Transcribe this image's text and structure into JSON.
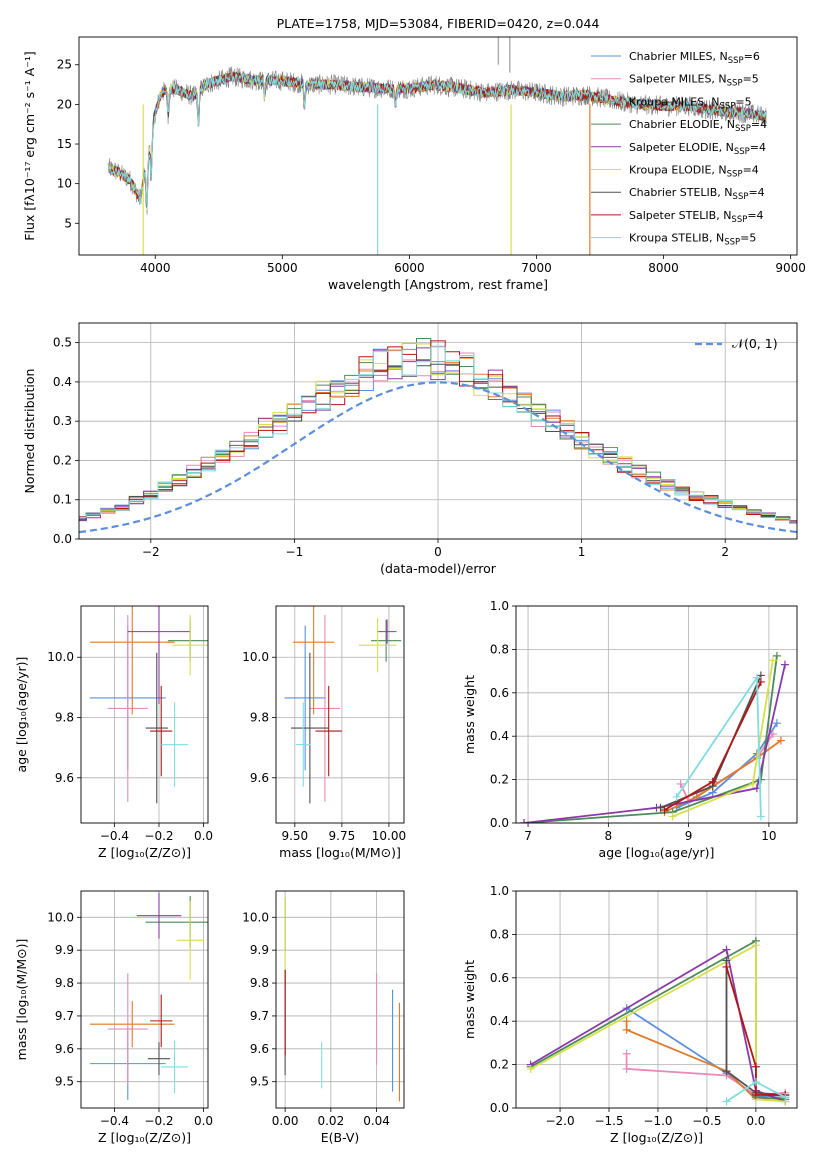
{
  "colors": {
    "Chabrier MILES": "#5b8fdc",
    "Salpeter MILES": "#e88ab8",
    "Kroupa MILES": "#e07a2a",
    "Chabrier ELODIE": "#4d8a5a",
    "Salpeter ELODIE": "#8a3aa8",
    "Kroupa ELODIE": "#d6e04a",
    "Chabrier STELIB": "#505050",
    "Salpeter STELIB": "#b01818",
    "Kroupa STELIB": "#80dce0"
  },
  "chart_data": [
    {
      "id": "spectrum",
      "type": "line",
      "title": "PLATE=1758, MJD=53084, FIBERID=0420, z=0.044",
      "xlabel": "wavelength [Angstrom, rest frame]",
      "ylabel": "Flux [fλ10⁻¹⁷ erg cm⁻² s⁻¹ A⁻¹]",
      "xlim": [
        3400,
        9050
      ],
      "ylim": [
        1,
        28.5
      ],
      "xticks": [
        4000,
        5000,
        6000,
        7000,
        8000,
        9000
      ],
      "yticks": [
        5,
        10,
        15,
        20,
        25
      ],
      "legend_position": "top-right",
      "legend": [
        {
          "name": "Chabrier MILES",
          "label": "Chabrier MILES, N",
          "sub": "SSP",
          "suffix": "=6"
        },
        {
          "name": "Salpeter MILES",
          "label": "Salpeter MILES, N",
          "sub": "SSP",
          "suffix": "=5"
        },
        {
          "name": "Kroupa MILES",
          "label": "Kroupa MILES, N",
          "sub": "SSP",
          "suffix": "=5"
        },
        {
          "name": "Chabrier ELODIE",
          "label": "Chabrier ELODIE, N",
          "sub": "SSP",
          "suffix": "=4"
        },
        {
          "name": "Salpeter ELODIE",
          "label": "Salpeter ELODIE, N",
          "sub": "SSP",
          "suffix": "=4"
        },
        {
          "name": "Kroupa ELODIE",
          "label": "Kroupa ELODIE, N",
          "sub": "SSP",
          "suffix": "=4"
        },
        {
          "name": "Chabrier STELIB",
          "label": "Chabrier STELIB, N",
          "sub": "SSP",
          "suffix": "=4"
        },
        {
          "name": "Salpeter STELIB",
          "label": "Salpeter STELIB, N",
          "sub": "SSP",
          "suffix": "=4"
        },
        {
          "name": "Kroupa STELIB",
          "label": "Kroupa STELIB, N",
          "sub": "SSP",
          "suffix": "=5"
        }
      ],
      "continuum": [
        [
          3630,
          12
        ],
        [
          3700,
          11.5
        ],
        [
          3800,
          10.5
        ],
        [
          3880,
          8
        ],
        [
          3950,
          14
        ],
        [
          4000,
          19
        ],
        [
          4050,
          21.5
        ],
        [
          4150,
          22
        ],
        [
          4300,
          21
        ],
        [
          4400,
          22.5
        ],
        [
          4600,
          23.5
        ],
        [
          4800,
          23
        ],
        [
          5000,
          23
        ],
        [
          5200,
          22.5
        ],
        [
          5400,
          22.5
        ],
        [
          5600,
          22.2
        ],
        [
          5800,
          22
        ],
        [
          6000,
          22
        ],
        [
          6200,
          22.5
        ],
        [
          6400,
          22
        ],
        [
          6600,
          21.5
        ],
        [
          6800,
          21.8
        ],
        [
          7000,
          21.5
        ],
        [
          7200,
          21
        ],
        [
          7400,
          21.2
        ],
        [
          7600,
          20.5
        ],
        [
          7800,
          20
        ],
        [
          8000,
          19.8
        ],
        [
          8200,
          19.8
        ],
        [
          8400,
          19.2
        ],
        [
          8600,
          19
        ],
        [
          8800,
          18.5
        ]
      ]
    },
    {
      "id": "residuals",
      "type": "histogram",
      "xlabel": "(data-model)/error",
      "ylabel": "Normed distribution",
      "xlim": [
        -2.5,
        2.5
      ],
      "ylim": [
        0,
        0.55
      ],
      "xticks": [
        -2,
        -1,
        0,
        1,
        2
      ],
      "yticks": [
        0.0,
        0.1,
        0.2,
        0.3,
        0.4,
        0.5
      ],
      "legend_position": "top-right",
      "gaussian_label": "𝒩(0, 1)",
      "bin_width": 0.1,
      "base_values": [
        0.018,
        0.02,
        0.027,
        0.03,
        0.038,
        0.045,
        0.052,
        0.06,
        0.072,
        0.08,
        0.098,
        0.11,
        0.132,
        0.15,
        0.17,
        0.19,
        0.215,
        0.235,
        0.255,
        0.28,
        0.3,
        0.325,
        0.345,
        0.365,
        0.38,
        0.4,
        0.42,
        0.44,
        0.45,
        0.455,
        0.46,
        0.455,
        0.445,
        0.43,
        0.41,
        0.39,
        0.37,
        0.345,
        0.32,
        0.3,
        0.275,
        0.25,
        0.23,
        0.21,
        0.19,
        0.17,
        0.155,
        0.14,
        0.125,
        0.11,
        0.1,
        0.088,
        0.078,
        0.07,
        0.06,
        0.052,
        0.045,
        0.04,
        0.033,
        0.028,
        0.025,
        0.022,
        0.02
      ]
    },
    {
      "id": "age-vs-Z",
      "type": "errorbar",
      "xlabel": "Z [log₁₀(Z/Z⊙)]",
      "ylabel": "age  [log₁₀(age/yr)]",
      "xlim": [
        -0.55,
        0.02
      ],
      "ylim": [
        9.45,
        10.17
      ],
      "xticks": [
        -0.4,
        -0.2,
        0.0
      ],
      "yticks": [
        9.6,
        9.8,
        10.0
      ],
      "points": [
        {
          "series": "Chabrier MILES",
          "x": -0.34,
          "y": 9.865,
          "xerr": 0.17,
          "yerr": 0.24
        },
        {
          "series": "Salpeter MILES",
          "x": -0.34,
          "y": 9.83,
          "xerr": 0.09,
          "yerr": 0.31
        },
        {
          "series": "Kroupa MILES",
          "x": -0.32,
          "y": 10.05,
          "xerr": 0.19,
          "yerr": 0.24
        },
        {
          "series": "Chabrier ELODIE",
          "x": -0.06,
          "y": 10.055,
          "xerr": 0.1,
          "yerr": 0.07
        },
        {
          "series": "Salpeter ELODIE",
          "x": -0.2,
          "y": 10.085,
          "xerr": 0.14,
          "yerr": 0.24
        },
        {
          "series": "Kroupa ELODIE",
          "x": -0.06,
          "y": 10.04,
          "xerr": 0.08,
          "yerr": 0.1
        },
        {
          "series": "Chabrier STELIB",
          "x": -0.21,
          "y": 9.765,
          "xerr": 0.05,
          "yerr": 0.25
        },
        {
          "series": "Salpeter STELIB",
          "x": -0.19,
          "y": 9.755,
          "xerr": 0.05,
          "yerr": 0.15
        },
        {
          "series": "Kroupa STELIB",
          "x": -0.13,
          "y": 9.71,
          "xerr": 0.06,
          "yerr": 0.14
        }
      ]
    },
    {
      "id": "age-vs-mass",
      "type": "errorbar",
      "xlabel": "mass [log₁₀(M/M⊙)]",
      "ylabel": "",
      "xlim": [
        9.4,
        10.08
      ],
      "ylim": [
        9.45,
        10.17
      ],
      "xticks": [
        9.5,
        9.75,
        10.0
      ],
      "yticks": [
        9.6,
        9.8,
        10.0
      ],
      "points": [
        {
          "series": "Chabrier MILES",
          "x": 9.555,
          "y": 9.865,
          "xerr": 0.11,
          "yerr": 0.24
        },
        {
          "series": "Salpeter MILES",
          "x": 9.66,
          "y": 9.83,
          "xerr": 0.08,
          "yerr": 0.31
        },
        {
          "series": "Kroupa MILES",
          "x": 9.6,
          "y": 10.05,
          "xerr": 0.11,
          "yerr": 0.24
        },
        {
          "series": "Chabrier ELODIE",
          "x": 9.985,
          "y": 10.055,
          "xerr": 0.08,
          "yerr": 0.07
        },
        {
          "series": "Salpeter ELODIE",
          "x": 9.99,
          "y": 10.085,
          "xerr": 0.05,
          "yerr": 0.04
        },
        {
          "series": "Kroupa ELODIE",
          "x": 9.94,
          "y": 10.04,
          "xerr": 0.1,
          "yerr": 0.09
        },
        {
          "series": "Chabrier STELIB",
          "x": 9.58,
          "y": 9.765,
          "xerr": 0.1,
          "yerr": 0.25
        },
        {
          "series": "Salpeter STELIB",
          "x": 9.68,
          "y": 9.755,
          "xerr": 0.07,
          "yerr": 0.15
        },
        {
          "series": "Kroupa STELIB",
          "x": 9.545,
          "y": 9.71,
          "xerr": 0.04,
          "yerr": 0.14
        }
      ]
    },
    {
      "id": "weight-vs-age",
      "type": "line",
      "xlabel": "age  [log₁₀(age/yr)]",
      "ylabel": "mass weight",
      "xlim": [
        6.85,
        10.35
      ],
      "ylim": [
        0,
        1.0
      ],
      "xticks": [
        7,
        8,
        9,
        10
      ],
      "yticks": [
        0.0,
        0.2,
        0.4,
        0.6,
        0.8,
        1.0
      ],
      "series": [
        {
          "name": "Chabrier MILES",
          "points": [
            [
              8.85,
              0.07
            ],
            [
              9.3,
              0.14
            ],
            [
              9.85,
              0.32
            ],
            [
              10.1,
              0.46
            ]
          ]
        },
        {
          "name": "Salpeter MILES",
          "points": [
            [
              8.9,
              0.18
            ],
            [
              9.0,
              0.1
            ],
            [
              9.85,
              0.3
            ],
            [
              10.05,
              0.41
            ]
          ]
        },
        {
          "name": "Kroupa MILES",
          "points": [
            [
              8.7,
              0.05
            ],
            [
              9.1,
              0.12
            ],
            [
              9.85,
              0.3
            ],
            [
              10.15,
              0.38
            ]
          ]
        },
        {
          "name": "Chabrier ELODIE",
          "points": [
            [
              6.95,
              0.0
            ],
            [
              8.8,
              0.05
            ],
            [
              9.9,
              0.2
            ],
            [
              10.1,
              0.77
            ]
          ]
        },
        {
          "name": "Salpeter ELODIE",
          "points": [
            [
              6.95,
              0.0
            ],
            [
              8.6,
              0.07
            ],
            [
              9.85,
              0.16
            ],
            [
              10.2,
              0.73
            ]
          ]
        },
        {
          "name": "Kroupa ELODIE",
          "points": [
            [
              8.8,
              0.03
            ],
            [
              9.8,
              0.18
            ],
            [
              10.05,
              0.75
            ]
          ]
        },
        {
          "name": "Chabrier STELIB",
          "points": [
            [
              8.65,
              0.07
            ],
            [
              9.3,
              0.17
            ],
            [
              9.9,
              0.68
            ]
          ]
        },
        {
          "name": "Salpeter STELIB",
          "points": [
            [
              8.7,
              0.06
            ],
            [
              9.3,
              0.19
            ],
            [
              9.9,
              0.65
            ]
          ]
        },
        {
          "name": "Kroupa STELIB",
          "points": [
            [
              8.85,
              0.12
            ],
            [
              9.85,
              0.67
            ],
            [
              9.9,
              0.03
            ]
          ]
        }
      ]
    },
    {
      "id": "mass-vs-Z",
      "type": "errorbar",
      "xlabel": "Z [log₁₀(Z/Z⊙)]",
      "ylabel": "mass [log₁₀(M/M⊙)]",
      "xlim": [
        -0.55,
        0.02
      ],
      "ylim": [
        9.42,
        10.08
      ],
      "xticks": [
        -0.4,
        -0.2,
        0.0
      ],
      "yticks": [
        9.5,
        9.6,
        9.7,
        9.8,
        9.9,
        10.0
      ],
      "points": [
        {
          "series": "Chabrier MILES",
          "x": -0.34,
          "y": 9.555,
          "xerr": 0.17,
          "yerr": 0.11
        },
        {
          "series": "Salpeter MILES",
          "x": -0.34,
          "y": 9.66,
          "xerr": 0.09,
          "yerr": 0.17
        },
        {
          "series": "Kroupa MILES",
          "x": -0.32,
          "y": 9.675,
          "xerr": 0.19,
          "yerr": 0.07
        },
        {
          "series": "Chabrier ELODIE",
          "x": -0.06,
          "y": 9.985,
          "xerr": 0.2,
          "yerr": 0.08
        },
        {
          "series": "Salpeter ELODIE",
          "x": -0.2,
          "y": 10.005,
          "xerr": 0.1,
          "yerr": 0.07
        },
        {
          "series": "Kroupa ELODIE",
          "x": -0.06,
          "y": 9.93,
          "xerr": 0.06,
          "yerr": 0.12
        },
        {
          "series": "Chabrier STELIB",
          "x": -0.2,
          "y": 9.57,
          "xerr": 0.05,
          "yerr": 0.05
        },
        {
          "series": "Salpeter STELIB",
          "x": -0.19,
          "y": 9.685,
          "xerr": 0.05,
          "yerr": 0.08
        },
        {
          "series": "Kroupa STELIB",
          "x": -0.13,
          "y": 9.545,
          "xerr": 0.06,
          "yerr": 0.08
        }
      ]
    },
    {
      "id": "mass-vs-ebv",
      "type": "errorbar",
      "xlabel": "E(B-V)",
      "ylabel": "",
      "xlim": [
        -0.004,
        0.052
      ],
      "ylim": [
        9.42,
        10.08
      ],
      "xticks": [
        0.0,
        0.02,
        0.04
      ],
      "yticks": [
        9.5,
        9.6,
        9.7,
        9.8,
        9.9,
        10.0
      ],
      "points": [
        {
          "series": "Chabrier MILES",
          "x": 0.047,
          "y": 9.625,
          "xerr": 0,
          "yerr": 0.155
        },
        {
          "series": "Salpeter MILES",
          "x": 0.04,
          "y": 9.69,
          "xerr": 0,
          "yerr": 0.14
        },
        {
          "series": "Kroupa MILES",
          "x": 0.05,
          "y": 9.59,
          "xerr": 0,
          "yerr": 0.15
        },
        {
          "series": "Chabrier ELODIE",
          "x": 0.0,
          "y": 9.98,
          "xerr": 0,
          "yerr": 0.08
        },
        {
          "series": "Kroupa ELODIE",
          "x": 0.0,
          "y": 9.93,
          "xerr": 0,
          "yerr": 0.13
        },
        {
          "series": "Chabrier STELIB",
          "x": 0.0,
          "y": 9.68,
          "xerr": 0,
          "yerr": 0.16
        },
        {
          "series": "Salpeter STELIB",
          "x": 0.0,
          "y": 9.71,
          "xerr": 0,
          "yerr": 0.13
        },
        {
          "series": "Kroupa STELIB",
          "x": 0.016,
          "y": 9.55,
          "xerr": 0,
          "yerr": 0.07
        }
      ]
    },
    {
      "id": "weight-vs-Z",
      "type": "line",
      "xlabel": "Z [log₁₀(Z/Z⊙)]",
      "ylabel": "mass weight",
      "xlim": [
        -2.45,
        0.42
      ],
      "ylim": [
        0,
        1.0
      ],
      "xticks": [
        -2.0,
        -1.5,
        -1.0,
        -0.5,
        0.0
      ],
      "yticks": [
        0.0,
        0.2,
        0.4,
        0.6,
        0.8,
        1.0
      ],
      "series": [
        {
          "name": "Chabrier MILES",
          "points": [
            [
              -1.32,
              0.46
            ],
            [
              -0.3,
              0.16
            ],
            [
              0.0,
              0.05
            ],
            [
              0.3,
              0.06
            ]
          ]
        },
        {
          "name": "Salpeter MILES",
          "points": [
            [
              -1.32,
              0.25
            ],
            [
              -1.32,
              0.18
            ],
            [
              -0.3,
              0.15
            ],
            [
              0.0,
              0.06
            ],
            [
              0.3,
              0.07
            ]
          ]
        },
        {
          "name": "Kroupa MILES",
          "points": [
            [
              -1.32,
              0.4
            ],
            [
              -1.32,
              0.36
            ],
            [
              -0.3,
              0.17
            ],
            [
              0.0,
              0.04
            ],
            [
              0.3,
              0.05
            ]
          ]
        },
        {
          "name": "Chabrier ELODIE",
          "points": [
            [
              -2.3,
              0.19
            ],
            [
              0.0,
              0.77
            ],
            [
              0.0,
              0.05
            ],
            [
              0.3,
              0.04
            ]
          ]
        },
        {
          "name": "Salpeter ELODIE",
          "points": [
            [
              -2.3,
              0.2
            ],
            [
              -0.3,
              0.73
            ],
            [
              0.0,
              0.08
            ],
            [
              0.3,
              0.03
            ]
          ]
        },
        {
          "name": "Kroupa ELODIE",
          "points": [
            [
              -2.3,
              0.18
            ],
            [
              0.0,
              0.75
            ],
            [
              0.0,
              0.04
            ],
            [
              0.3,
              0.03
            ]
          ]
        },
        {
          "name": "Chabrier STELIB",
          "points": [
            [
              -0.3,
              0.68
            ],
            [
              -0.3,
              0.17
            ],
            [
              0.0,
              0.07
            ],
            [
              0.3,
              0.06
            ]
          ]
        },
        {
          "name": "Salpeter STELIB",
          "points": [
            [
              -0.3,
              0.65
            ],
            [
              0.0,
              0.19
            ],
            [
              0.0,
              0.06
            ],
            [
              0.3,
              0.06
            ]
          ]
        },
        {
          "name": "Kroupa STELIB",
          "points": [
            [
              -0.3,
              0.03
            ],
            [
              0.0,
              0.12
            ],
            [
              0.3,
              0.05
            ]
          ]
        }
      ]
    }
  ]
}
